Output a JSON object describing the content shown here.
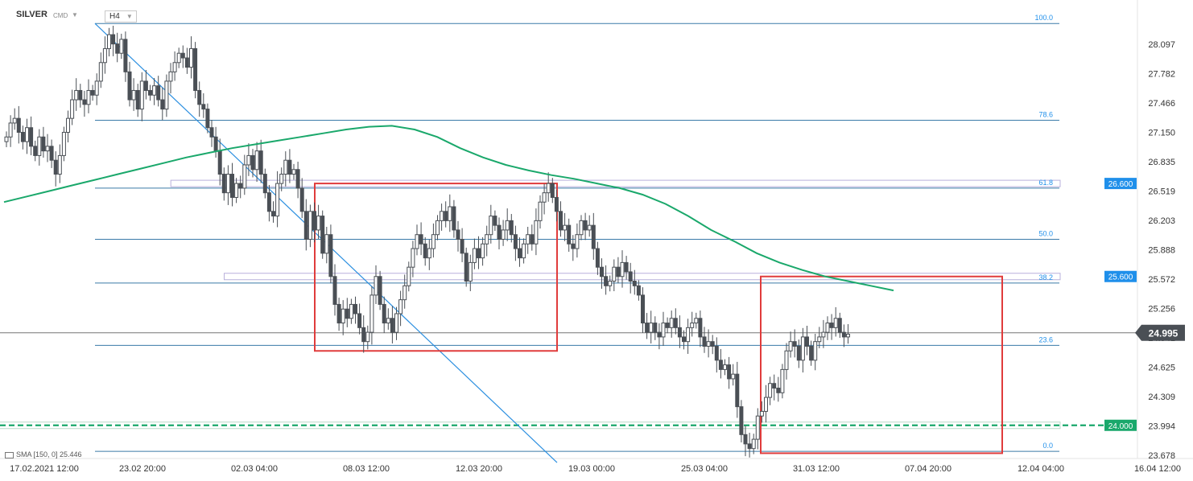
{
  "header": {
    "symbol": "SILVER",
    "source": "CMD",
    "timeframe": "H4"
  },
  "legend": {
    "indicator": "SMA [150, 0] 25.446"
  },
  "colors": {
    "candle": "#4a4f55",
    "sma": "#1aa86b",
    "fib": "#3a7aa8",
    "trendline": "#2b8fe0",
    "box": "#e03c3c",
    "zone": "#b9b0dc",
    "level_badge": "#1f8fea",
    "price_badge": "#4a4f55",
    "support": "#1aa86b"
  },
  "chart_data": {
    "type": "candlestick",
    "title": "",
    "xlabel": "",
    "ylabel": "",
    "ylim": [
      23.6,
      28.3
    ],
    "x_ticks": [
      "17.02.2021 12:00",
      "23.02 20:00",
      "02.03 04:00",
      "08.03 12:00",
      "12.03 20:00",
      "19.03 00:00",
      "25.03 04:00",
      "31.03 12:00",
      "07.04 20:00",
      "12.04 04:00",
      "16.04 12:00"
    ],
    "y_ticks": [
      "28.097",
      "27.782",
      "27.466",
      "27.150",
      "26.835",
      "26.519",
      "26.203",
      "25.888",
      "25.572",
      "25.256",
      "24.941",
      "24.625",
      "24.309",
      "23.994",
      "23.678"
    ],
    "y_tick_values": [
      28.097,
      27.782,
      27.466,
      27.15,
      26.835,
      26.519,
      26.203,
      25.888,
      25.572,
      25.256,
      24.941,
      24.625,
      24.309,
      23.994,
      23.678
    ],
    "current_price": "24.995",
    "current_price_value": 24.995,
    "level_badges": [
      {
        "label": "26.600",
        "value": 26.6
      },
      {
        "label": "25.600",
        "value": 25.6
      },
      {
        "label": "24.000",
        "value": 24.0
      }
    ],
    "fibonacci": [
      {
        "label": "100.0",
        "value": 28.32
      },
      {
        "label": "78.6",
        "value": 27.28
      },
      {
        "label": "61.8",
        "value": 26.55
      },
      {
        "label": "50.0",
        "value": 26.0
      },
      {
        "label": "38.2",
        "value": 25.53
      },
      {
        "label": "23.6",
        "value": 24.86
      },
      {
        "label": "0.0",
        "value": 23.72
      }
    ],
    "candles_close": [
      27.1,
      27.25,
      27.3,
      27.15,
      27.05,
      27.2,
      27.0,
      26.9,
      27.1,
      26.95,
      27.0,
      26.85,
      26.7,
      26.9,
      27.15,
      27.3,
      27.5,
      27.6,
      27.5,
      27.45,
      27.6,
      27.55,
      27.7,
      27.9,
      28.05,
      28.2,
      28.1,
      28.0,
      28.15,
      27.8,
      27.5,
      27.6,
      27.4,
      27.7,
      27.6,
      27.55,
      27.65,
      27.5,
      27.4,
      27.7,
      27.8,
      27.9,
      28.0,
      27.95,
      27.85,
      28.05,
      27.6,
      27.45,
      27.4,
      27.2,
      27.1,
      26.95,
      26.7,
      26.5,
      26.7,
      26.45,
      26.6,
      26.55,
      26.8,
      26.9,
      26.75,
      26.95,
      26.7,
      26.5,
      26.3,
      26.25,
      26.6,
      26.7,
      26.85,
      26.7,
      26.75,
      26.55,
      26.3,
      26.0,
      26.3,
      26.1,
      26.25,
      25.85,
      26.05,
      25.6,
      25.3,
      25.1,
      25.25,
      25.15,
      25.3,
      25.2,
      25.05,
      24.9,
      25.0,
      25.4,
      25.6,
      25.3,
      25.1,
      25.15,
      25.0,
      25.2,
      25.35,
      25.5,
      25.7,
      25.9,
      26.05,
      25.95,
      25.8,
      25.9,
      26.05,
      26.2,
      26.3,
      26.2,
      26.35,
      26.1,
      26.0,
      25.85,
      25.55,
      25.75,
      25.9,
      25.8,
      25.95,
      26.05,
      26.25,
      26.15,
      26.0,
      26.1,
      26.2,
      26.05,
      25.9,
      25.8,
      25.95,
      26.05,
      25.95,
      26.2,
      26.4,
      26.5,
      26.6,
      26.45,
      26.3,
      26.1,
      26.15,
      25.95,
      25.9,
      26.05,
      26.2,
      26.1,
      26.15,
      25.9,
      25.7,
      25.6,
      25.5,
      25.55,
      25.7,
      25.6,
      25.75,
      25.65,
      25.55,
      25.5,
      25.4,
      25.1,
      25.0,
      25.1,
      25.0,
      24.95,
      25.1,
      25.05,
      25.15,
      25.05,
      24.95,
      24.9,
      25.05,
      25.1,
      25.15,
      24.95,
      24.85,
      24.9,
      24.85,
      24.7,
      24.6,
      24.65,
      24.5,
      24.55,
      24.2,
      23.9,
      23.8,
      23.75,
      23.85,
      24.1,
      24.15,
      24.3,
      24.45,
      24.4,
      24.35,
      24.6,
      24.8,
      24.9,
      24.85,
      24.7,
      24.95,
      24.85,
      24.7,
      24.9,
      24.95,
      25.0,
      25.1,
      25.05,
      25.15,
      25.0,
      24.95,
      24.98
    ],
    "sma_label": "SMA [150, 0] 25.446",
    "sma_series": [
      26.4,
      26.46,
      26.52,
      26.58,
      26.64,
      26.7,
      26.76,
      26.82,
      26.88,
      26.93,
      26.98,
      27.02,
      27.06,
      27.1,
      27.14,
      27.18,
      27.21,
      27.22,
      27.18,
      27.1,
      26.98,
      26.88,
      26.8,
      26.74,
      26.69,
      26.65,
      26.6,
      26.55,
      26.48,
      26.38,
      26.25,
      26.1,
      25.98,
      25.85,
      25.75,
      25.67,
      25.6,
      25.55,
      25.5,
      25.45
    ],
    "sma_last": 25.446,
    "trendline": [
      {
        "bar": 0,
        "value": 28.32
      },
      {
        "bar": 90,
        "value": 23.6
      }
    ],
    "boxes": [
      {
        "from_bar": 42,
        "to_bar": 98,
        "top": 26.6,
        "bottom": 24.8
      },
      {
        "from_bar": 140,
        "to_bar": 202,
        "top": 25.6,
        "bottom": 23.7
      }
    ],
    "zones": [
      {
        "from_bar": 42,
        "value": 26.6
      },
      {
        "from_bar": 55,
        "value": 25.6
      },
      {
        "from_bar": 0,
        "value": 24.0
      }
    ],
    "grid": false,
    "legend_position": "bottom-left"
  }
}
